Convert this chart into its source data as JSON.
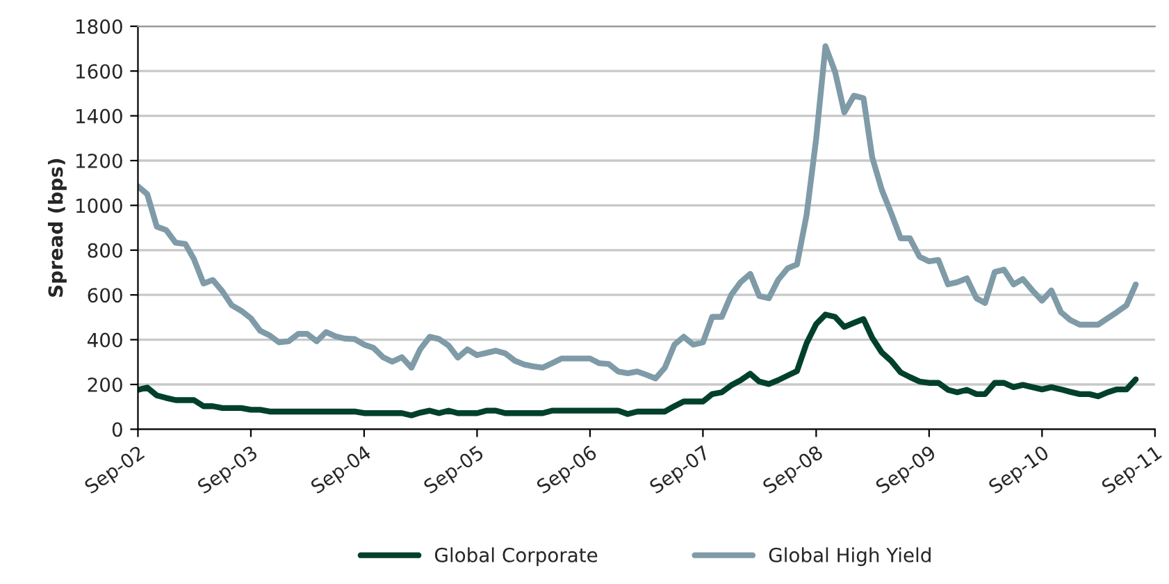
{
  "chart_data": {
    "type": "line",
    "ylabel": "Spread (bps)",
    "x": [
      "2002-09",
      "2002-10",
      "2002-11",
      "2002-12",
      "2003-01",
      "2003-02",
      "2003-03",
      "2003-04",
      "2003-05",
      "2003-06",
      "2003-07",
      "2003-08",
      "2003-09",
      "2003-10",
      "2003-11",
      "2003-12",
      "2004-01",
      "2004-02",
      "2004-03",
      "2004-04",
      "2004-05",
      "2004-06",
      "2004-07",
      "2004-08",
      "2004-09",
      "2004-10",
      "2004-11",
      "2004-12",
      "2005-01",
      "2005-02",
      "2005-03",
      "2005-04",
      "2005-05",
      "2005-06",
      "2005-07",
      "2005-08",
      "2005-09",
      "2005-10",
      "2005-11",
      "2005-12",
      "2006-01",
      "2006-02",
      "2006-03",
      "2006-04",
      "2006-05",
      "2006-06",
      "2006-07",
      "2006-08",
      "2006-09",
      "2006-10",
      "2006-11",
      "2006-12",
      "2007-01",
      "2007-02",
      "2007-03",
      "2007-04",
      "2007-05",
      "2007-06",
      "2007-07",
      "2007-08",
      "2007-09",
      "2007-10",
      "2007-11",
      "2007-12",
      "2008-01",
      "2008-02",
      "2008-03",
      "2008-04",
      "2008-05",
      "2008-06",
      "2008-07",
      "2008-08",
      "2008-09",
      "2008-10",
      "2008-11",
      "2008-12",
      "2009-01",
      "2009-02",
      "2009-03",
      "2009-04",
      "2009-05",
      "2009-06",
      "2009-07",
      "2009-08",
      "2009-09",
      "2009-10",
      "2009-11",
      "2009-12",
      "2010-01",
      "2010-02",
      "2010-03",
      "2010-04",
      "2010-05",
      "2010-06",
      "2010-07",
      "2010-08",
      "2010-09",
      "2010-10",
      "2010-11",
      "2010-12",
      "2011-01",
      "2011-02",
      "2011-03",
      "2011-04",
      "2011-05",
      "2011-06",
      "2011-07"
    ],
    "xlim": [
      "2002-09",
      "2011-09"
    ],
    "xticks": [
      {
        "value": "2002-09",
        "label": "Sep-02"
      },
      {
        "value": "2003-09",
        "label": "Sep-03"
      },
      {
        "value": "2004-09",
        "label": "Sep-04"
      },
      {
        "value": "2005-09",
        "label": "Sep-05"
      },
      {
        "value": "2006-09",
        "label": "Sep-06"
      },
      {
        "value": "2007-09",
        "label": "Sep-07"
      },
      {
        "value": "2008-09",
        "label": "Sep-08"
      },
      {
        "value": "2009-09",
        "label": "Sep-09"
      },
      {
        "value": "2010-09",
        "label": "Sep-10"
      },
      {
        "value": "2011-09",
        "label": "Sep-11"
      }
    ],
    "ylim": [
      0,
      1800
    ],
    "yticks": [
      0,
      200,
      400,
      600,
      800,
      1000,
      1200,
      1400,
      1600,
      1800
    ],
    "grid": "y",
    "legend": "bottom",
    "marker": "none",
    "line_style": "solid",
    "series": [
      {
        "name": "Global Corporate",
        "color": "#00402c",
        "values": [
          176,
          186,
          151,
          140,
          130,
          130,
          130,
          103,
          103,
          95,
          95,
          95,
          87,
          87,
          79,
          79,
          79,
          79,
          79,
          79,
          79,
          79,
          79,
          79,
          72,
          72,
          72,
          72,
          72,
          62,
          74,
          83,
          72,
          83,
          72,
          72,
          72,
          83,
          83,
          72,
          72,
          72,
          72,
          72,
          83,
          83,
          83,
          83,
          83,
          83,
          83,
          83,
          68,
          79,
          79,
          79,
          79,
          103,
          124,
          124,
          124,
          157,
          165,
          196,
          219,
          248,
          213,
          202,
          219,
          240,
          260,
          384,
          470,
          512,
          502,
          457,
          475,
          492,
          409,
          343,
          306,
          254,
          233,
          213,
          207,
          207,
          176,
          165,
          176,
          157,
          157,
          207,
          207,
          188,
          198,
          188,
          178,
          188,
          178,
          167,
          157,
          157,
          147,
          165,
          178,
          178,
          223
        ]
      },
      {
        "name": "Global High Yield",
        "color": "#7f9ba8",
        "values": [
          1085,
          1050,
          905,
          890,
          833,
          828,
          760,
          651,
          667,
          616,
          554,
          529,
          496,
          440,
          419,
          388,
          393,
          426,
          426,
          393,
          434,
          415,
          405,
          403,
          378,
          364,
          322,
          302,
          322,
          275,
          357,
          413,
          403,
          374,
          320,
          357,
          331,
          341,
          351,
          339,
          306,
          289,
          281,
          275,
          295,
          316,
          316,
          316,
          316,
          295,
          291,
          258,
          250,
          258,
          244,
          227,
          275,
          378,
          413,
          378,
          388,
          502,
          502,
          599,
          657,
          694,
          595,
          585,
          667,
          719,
          736,
          957,
          1298,
          1711,
          1597,
          1415,
          1490,
          1479,
          1215,
          1070,
          967,
          853,
          853,
          771,
          750,
          756,
          647,
          657,
          674,
          585,
          564,
          702,
          713,
          647,
          671,
          620,
          574,
          620,
          523,
          488,
          467,
          467,
          467,
          496,
          523,
          554,
          647
        ]
      }
    ]
  }
}
